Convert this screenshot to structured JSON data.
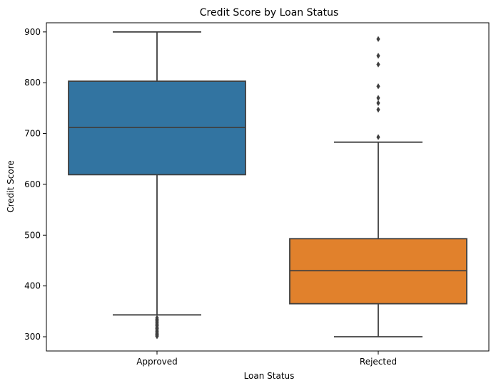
{
  "chart_data": {
    "type": "box",
    "title": "Credit Score by Loan Status",
    "xlabel": "Loan Status",
    "ylabel": "Credit Score",
    "ylim": [
      272,
      918
    ],
    "yticks": [
      300,
      400,
      500,
      600,
      700,
      800,
      900
    ],
    "grid": false,
    "legend": "none",
    "categories": [
      "Approved",
      "Rejected"
    ],
    "boxes": [
      {
        "category": "Approved",
        "color": "#3274a1",
        "whisker_low": 343,
        "q1": 619,
        "median": 712,
        "q3": 803,
        "whisker_high": 900,
        "outliers": [
          337,
          334,
          331,
          328,
          325,
          322,
          319,
          316,
          313,
          310,
          307,
          305,
          303,
          301
        ]
      },
      {
        "category": "Rejected",
        "color": "#e1812c",
        "whisker_low": 300,
        "q1": 365,
        "median": 430,
        "q3": 493,
        "whisker_high": 683,
        "outliers": [
          886,
          853,
          836,
          793,
          770,
          760,
          747,
          693
        ]
      }
    ],
    "line_color": "#3f3f3f"
  }
}
